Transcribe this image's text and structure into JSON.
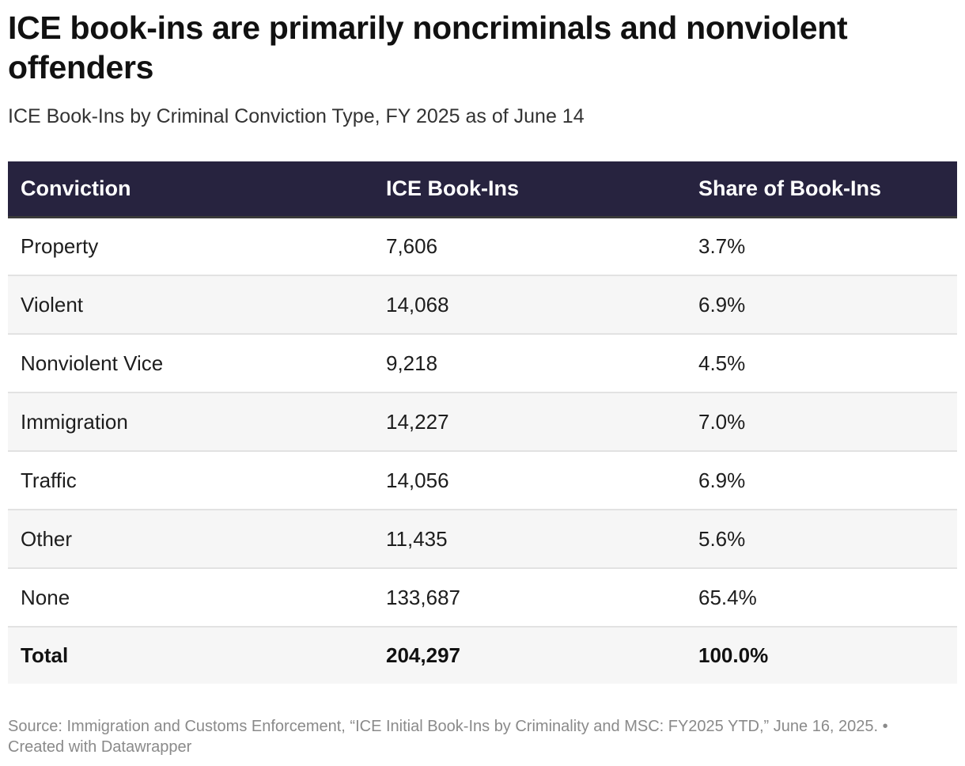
{
  "title": "ICE book-ins are primarily noncriminals and nonviolent offenders",
  "subtitle": "ICE Book-Ins by Criminal Conviction Type, FY 2025 as of June 14",
  "source": "Source: Immigration and Customs Enforcement, “ICE Initial Book-Ins by Criminality and MSC: FY2025 YTD,” June 16, 2025. • Created with Datawrapper",
  "colors": {
    "header_bg": "#27233f",
    "header_text": "#ffffff",
    "zebra": "#f6f6f6",
    "source_text": "#8a8a8a"
  },
  "chart_data": {
    "type": "table",
    "columns": [
      "Conviction",
      "ICE Book-Ins",
      "Share of Book-Ins"
    ],
    "rows": [
      [
        "Property",
        "7,606",
        "3.7%"
      ],
      [
        "Violent",
        "14,068",
        "6.9%"
      ],
      [
        "Nonviolent Vice",
        "9,218",
        "4.5%"
      ],
      [
        "Immigration",
        "14,227",
        "7.0%"
      ],
      [
        "Traffic",
        "14,056",
        "6.9%"
      ],
      [
        "Other",
        "11,435",
        "5.6%"
      ],
      [
        "None",
        "133,687",
        "65.4%"
      ],
      [
        "Total",
        "204,297",
        "100.0%"
      ]
    ]
  }
}
